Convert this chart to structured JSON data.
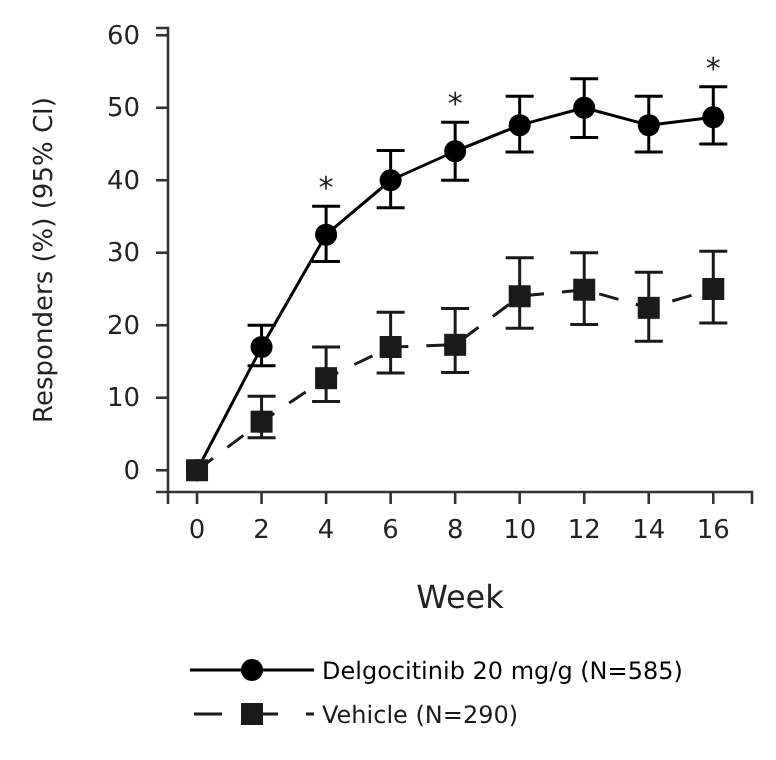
{
  "chart_data": {
    "type": "line",
    "xlabel": "Week",
    "ylabel": "Responders (%) (95% CI)",
    "x": [
      0,
      2,
      4,
      6,
      8,
      10,
      12,
      14,
      16
    ],
    "xlim": [
      -0.9,
      17.2
    ],
    "xticks": [
      0,
      2,
      4,
      6,
      8,
      10,
      12,
      14,
      16
    ],
    "ylim": [
      -3,
      61
    ],
    "yticks": [
      0,
      10,
      20,
      30,
      40,
      50,
      60
    ],
    "grid": false,
    "legend": "bottom",
    "series": [
      {
        "name": "Delgocitinib 20 mg/g (N=585)",
        "color": "#000000",
        "marker": "circle",
        "line_style": "solid",
        "values": [
          0,
          17,
          32.5,
          40,
          44,
          47.6,
          50,
          47.6,
          48.7
        ],
        "errors": [
          null,
          [
            14.4,
            20
          ],
          [
            28.8,
            36.4
          ],
          [
            36.2,
            44.1
          ],
          [
            40,
            48
          ],
          [
            43.9,
            51.6
          ],
          [
            45.9,
            54
          ],
          [
            43.9,
            51.6
          ],
          [
            45,
            52.9
          ]
        ]
      },
      {
        "name": "Vehicle (N=290)",
        "color": "#1a1a1a",
        "marker": "square",
        "line_style": "dashed",
        "values": [
          0,
          6.7,
          12.7,
          17,
          17.3,
          24,
          24.9,
          22.4,
          25
        ],
        "errors": [
          null,
          [
            4.5,
            10.2
          ],
          [
            9.5,
            17
          ],
          [
            13.4,
            21.8
          ],
          [
            13.5,
            22.3
          ],
          [
            19.6,
            29.3
          ],
          [
            20.1,
            30
          ],
          [
            17.8,
            27.3
          ],
          [
            20.3,
            30.2
          ]
        ]
      }
    ],
    "annotations": [
      {
        "text": "*",
        "x": 4,
        "y": 32.5
      },
      {
        "text": "*",
        "x": 8,
        "y": 44
      },
      {
        "text": "*",
        "x": 16,
        "y": 48.7
      }
    ]
  }
}
